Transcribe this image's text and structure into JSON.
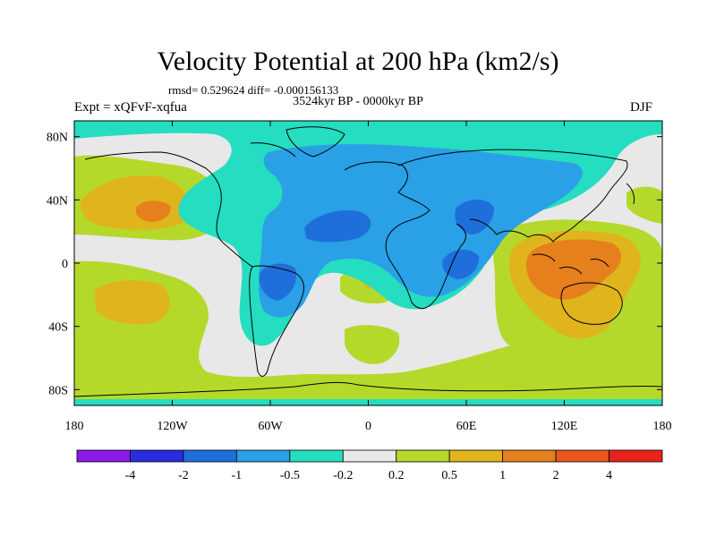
{
  "chart_data": {
    "type": "heatmap",
    "title": "Velocity Potential at 200 hPa (km2/s)",
    "subtitle": "rmsd= 0.529624 diff= -0.000156133",
    "period": "3524kyr BP - 0000kyr BP",
    "experiment": "Expt = xQFvF-xqfua",
    "season": "DJF",
    "x_ticks": [
      "180",
      "120W",
      "60W",
      "0",
      "60E",
      "120E",
      "180"
    ],
    "y_ticks": [
      "80N",
      "40N",
      "0",
      "40S",
      "80S"
    ],
    "x_range": [
      -180,
      180
    ],
    "y_range": [
      -90,
      90
    ],
    "colorbar": {
      "labels": [
        "-4",
        "-2",
        "-1",
        "-0.5",
        "-0.2",
        "0.2",
        "0.5",
        "1",
        "2",
        "4"
      ],
      "colors": [
        "#8c1ae6",
        "#2b2be0",
        "#1e6fd9",
        "#2aa0e6",
        "#25ddc0",
        "#e8e8e8",
        "#b5d92b",
        "#e0b41c",
        "#e6801c",
        "#e8561c",
        "#e8231c"
      ]
    },
    "regions": [
      {
        "level": "-0.5",
        "desc": "broad negative region over Atlantic, Africa, Eurasia, South America"
      },
      {
        "level": "-1",
        "desc": "centres over North Atlantic/Sahara, South America, Arabia, East Africa"
      },
      {
        "level": "-0.2",
        "desc": "high-latitude band and Southern Hemisphere low fringe"
      },
      {
        "level": "0.2",
        "desc": "positive region over Pacific, Southern Ocean, South Atlantic"
      },
      {
        "level": "0.5",
        "desc": "North Pacific, South Pacific, Maritime Continent, Australia"
      },
      {
        "level": "1",
        "desc": "core over Maritime Continent/Indonesia"
      }
    ]
  }
}
